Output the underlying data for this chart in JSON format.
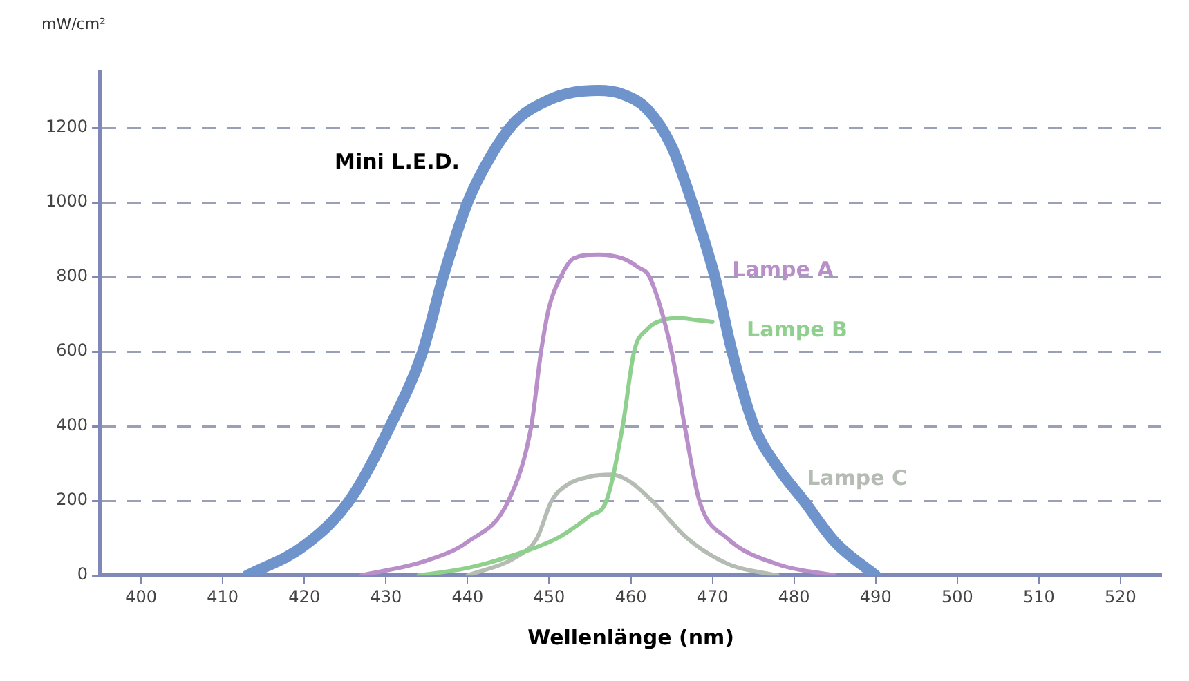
{
  "chart_data": {
    "type": "line",
    "xlabel": "Wellenlänge (nm)",
    "ylabel": "mW/cm²",
    "xlim": [
      395,
      525
    ],
    "xticks": [
      400,
      410,
      420,
      430,
      440,
      450,
      460,
      470,
      480,
      490,
      500,
      510,
      520
    ],
    "ylim": [
      0,
      1350
    ],
    "yticks": [
      0,
      200,
      400,
      600,
      800,
      1000,
      1200
    ],
    "grid": "y",
    "legend": false,
    "marker": "none",
    "series": [
      {
        "name": "Mini L.E.D.",
        "color": "#6f94cc",
        "x": [
          413,
          420,
          425.5,
          430.5,
          434.5,
          437,
          440,
          443,
          446,
          450,
          453,
          456,
          459,
          462,
          465,
          467.5,
          470.3,
          472.4,
          475.1,
          478,
          481.2,
          485,
          490
        ],
        "values": [
          0,
          80,
          200,
          400,
          600,
          800,
          1000,
          1130,
          1220,
          1275,
          1295,
          1300,
          1290,
          1250,
          1150,
          1000,
          800,
          600,
          400,
          290,
          200,
          90,
          0
        ]
      },
      {
        "name": "Lampe A",
        "color": "#b88fc8",
        "x": [
          427,
          435,
          440,
          445,
          447.8,
          449,
          450,
          451.4,
          453,
          456,
          459,
          461,
          462.3,
          465,
          466.6,
          468.4,
          471.8,
          478,
          485
        ],
        "values": [
          0,
          40,
          90,
          200,
          400,
          600,
          720,
          800,
          850,
          860,
          850,
          825,
          800,
          600,
          400,
          200,
          100,
          30,
          0
        ]
      },
      {
        "name": "Lampe B",
        "color": "#8fd08f",
        "x": [
          434,
          440,
          445,
          451,
          455,
          457,
          459,
          460.4,
          462,
          464,
          466,
          468,
          470
        ],
        "values": [
          0,
          20,
          50,
          100,
          160,
          200,
          400,
          600,
          660,
          685,
          690,
          685,
          680
        ]
      },
      {
        "name": "Lampe C",
        "color": "#b4bcb4",
        "x": [
          440,
          446,
          448.5,
          450.3,
          452,
          455,
          457.7,
          460,
          462.6,
          466.9,
          472,
          478
        ],
        "values": [
          0,
          50,
          100,
          200,
          240,
          265,
          270,
          250,
          200,
          100,
          30,
          0
        ]
      }
    ]
  }
}
